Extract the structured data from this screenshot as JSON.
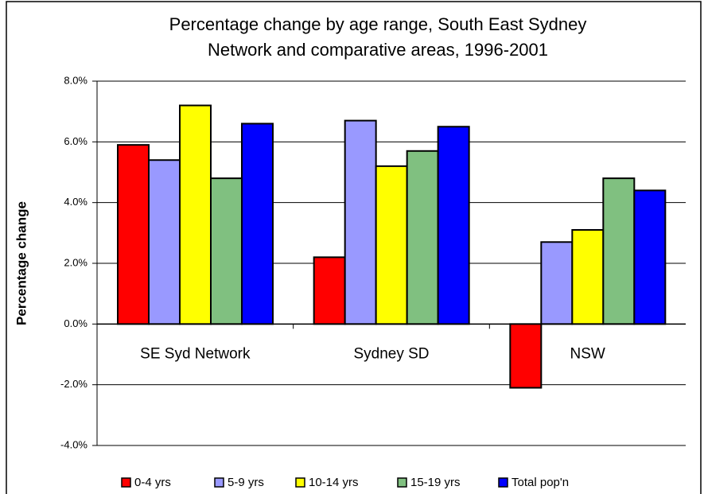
{
  "chart_data": {
    "type": "bar",
    "title": [
      "Percentage change by age range, South East Sydney",
      "Network and comparative areas, 1996-2001"
    ],
    "y_label": "Percentage change",
    "categories": [
      "SE Syd Network",
      "Sydney SD",
      "NSW"
    ],
    "series": [
      {
        "name": "0-4 yrs",
        "color": "#ff0000",
        "values": [
          5.9,
          2.2,
          -2.1
        ]
      },
      {
        "name": "5-9 yrs",
        "color": "#9999ff",
        "values": [
          5.4,
          6.7,
          2.7
        ]
      },
      {
        "name": "10-14 yrs",
        "color": "#ffff00",
        "values": [
          7.2,
          5.2,
          3.1
        ]
      },
      {
        "name": "15-19 yrs",
        "color": "#80c080",
        "values": [
          4.8,
          5.7,
          4.8
        ]
      },
      {
        "name": "Total pop'n",
        "color": "#0000ff",
        "values": [
          6.6,
          6.5,
          4.4
        ]
      }
    ],
    "ylim": [
      -4,
      8
    ],
    "yticks": [
      {
        "value": -4,
        "label": "-4.0%"
      },
      {
        "value": -2,
        "label": "-2.0%"
      },
      {
        "value": 0,
        "label": "0.0%"
      },
      {
        "value": 2,
        "label": "2.0%"
      },
      {
        "value": 4,
        "label": "4.0%"
      },
      {
        "value": 6,
        "label": "6.0%"
      },
      {
        "value": 8,
        "label": "8.0%"
      }
    ],
    "grid": true,
    "legend": "bottom"
  }
}
